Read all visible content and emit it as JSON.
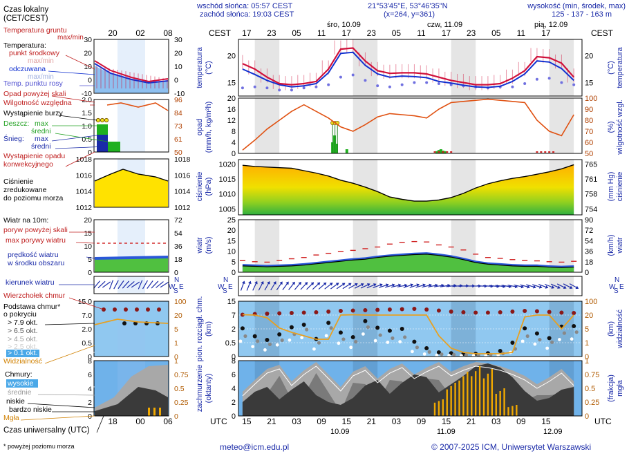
{
  "header": {
    "sunrise": "wschód słońca: 05:57 CEST",
    "sunset": "zachód słońca: 19:03 CEST",
    "coords": "21°53'45\"E, 53°46'35\"N",
    "grid": "(x=264, y=361)",
    "elevation_label": "wysokość (min, środek, max)",
    "elevation_values": "125 - 137 - 163 m"
  },
  "legend": {
    "local_time": "Czas lokalny\n(CET/CEST)",
    "soil_temp": "Temperatura gruntu",
    "soil_temp_sub": "max/min",
    "temperature": "Temperatura:",
    "mid_point": "punkt środkowy",
    "max_min": "max/min",
    "feels": "odczuwana",
    "max_min2": "max/min",
    "dew": "Temp. punktu rosy",
    "precip_above": "Opad powyżej skali",
    "humidity": "Wilgotność względna",
    "storm": "Wystąpienie burzy",
    "rain": "Deszcz:",
    "rain_max": "max",
    "rain_mean": "średni",
    "snow": "Śnieg:",
    "snow_max": "max",
    "snow_mean": "średni",
    "convective": "Wystąpienie opadu\nkonwekcyjnego",
    "pressure": "Ciśnienie\nzredukowane\ndo poziomu morza",
    "wind_at": "Wiatr na 10m:",
    "gust_above": "poryw powyżej skali",
    "gust_max": "max porywy wiatru",
    "wind_speed": "prędkość wiatru\nw środku obszaru",
    "wind_dir": "kierunek wiatru",
    "cloud_top": "Wierzchołek chmur",
    "cloud_base": "Podstawa chmur*\no pokryciu",
    "okt79": "> 7.9 okt.",
    "okt65": "> 6.5 okt.",
    "okt45": "> 4.5 okt.",
    "okt25": "> 2.5 okt.",
    "okt01": "> 0.1 okt.",
    "visibility": "Widzialność",
    "clouds": "Chmury:",
    "high": "wysokie",
    "middle": "średnie",
    "low": "niskie",
    "very_low": "bardzo niskie",
    "fog": "Mgła",
    "utc": "Czas uniwersalny (UTC)",
    "footnote": "* powyżej poziomu morza"
  },
  "footer": {
    "email": "meteo@icm.edu.pl",
    "copyright": "© 2007-2025 ICM, Uniwersytet Warszawski"
  },
  "colors": {
    "temp": "#d0103a",
    "feels": "#1030d0",
    "dew": "#7070e0",
    "humidity": "#e05010",
    "rain": "#20b020",
    "pressure_hi": "#ffd000",
    "pressure_lo": "#50c030",
    "wind_blue": "#2050d0",
    "visibility": "#e8a020",
    "sky": "#90c8f0"
  },
  "chart_data": [
    {
      "type": "line",
      "name": "temperature",
      "ylabel": "temperatura\n(°C)",
      "ylabel_right": "(°C)\ntemperatura",
      "yticks": [
        15,
        20
      ],
      "ylim": [
        12.5,
        23
      ],
      "x_utc_hours": [
        0,
        3,
        6,
        9,
        12,
        15,
        18,
        21,
        24,
        27,
        30,
        33,
        36,
        39,
        42,
        45,
        48,
        51,
        54,
        57,
        60,
        63,
        66,
        69,
        72,
        75,
        78,
        81
      ],
      "series": [
        {
          "name": "temperature",
          "values": [
            18.5,
            17.5,
            16.0,
            14.8,
            14.6,
            14.8,
            15.2,
            17.5,
            21.2,
            21.4,
            19.0,
            17.2,
            16.7,
            16.8,
            16.8,
            16.6,
            16.0,
            15.4,
            15.0,
            14.6,
            14.6,
            14.8,
            15.8,
            17.2,
            19.8,
            19.6,
            18.6,
            16.0
          ]
        },
        {
          "name": "feels",
          "values": [
            17.5,
            16.5,
            15.4,
            14.6,
            14.2,
            14.4,
            14.8,
            16.8,
            20.4,
            20.6,
            18.2,
            16.6,
            16.0,
            16.2,
            16.1,
            15.9,
            15.2,
            14.9,
            14.5,
            14.2,
            14.1,
            14.3,
            15.2,
            16.6,
            19.0,
            18.8,
            17.6,
            15.4
          ]
        },
        {
          "name": "dew",
          "values": [
            14.0,
            14.2,
            14.0,
            13.6,
            13.6,
            14.0,
            14.2,
            14.6,
            16.0,
            16.4,
            15.4,
            14.4,
            14.2,
            14.6,
            15.0,
            15.0,
            14.8,
            14.6,
            14.4,
            14.2,
            14.0,
            14.2,
            14.2,
            14.8,
            15.6,
            15.8,
            15.0,
            14.6
          ]
        }
      ]
    },
    {
      "type": "bar",
      "name": "precipitation",
      "ylabel": "opad\n(mm/h, kg/m²h)",
      "ylabel_right": "(%)\nwilgotność wzgl.",
      "yticks": [
        0,
        4,
        8,
        12,
        16,
        20
      ],
      "yticks_right": [
        50,
        60,
        70,
        80,
        90,
        100
      ],
      "humidity": [
        53,
        62,
        72,
        80,
        88,
        94,
        88,
        82,
        74,
        70,
        76,
        83,
        86,
        85,
        84,
        82,
        90,
        96,
        97,
        98,
        99,
        98,
        97,
        96,
        80,
        70,
        66,
        85
      ],
      "rain": [
        0,
        0,
        0,
        0,
        0,
        0,
        0,
        0,
        0,
        0,
        0,
        0,
        0,
        0,
        0,
        0,
        0,
        0,
        0,
        0,
        0,
        0,
        0,
        0,
        0,
        0,
        0,
        0
      ],
      "rain_bursts": [
        [
          22.0,
          4.0
        ],
        [
          22.5,
          6.5
        ],
        [
          23.0,
          3.5
        ],
        [
          25.5,
          1.5
        ],
        [
          47.5,
          0.8
        ],
        [
          48.0,
          1.2
        ],
        [
          48.5,
          1.5
        ],
        [
          49.0,
          1.0
        ],
        [
          49.5,
          0.8
        ]
      ],
      "storm_hours": [
        22.0,
        22.6,
        23.2
      ]
    },
    {
      "type": "area",
      "name": "pressure",
      "ylabel": "ciśnienie\n(hPa)",
      "ylabel_right": "(mm Hg)\nciśnienie",
      "yticks": [
        1005,
        1010,
        1015,
        1020
      ],
      "yticks_right": [
        754,
        758,
        761,
        765
      ],
      "ylim": [
        1003,
        1021.5
      ],
      "values": [
        1019.6,
        1019.2,
        1019.0,
        1018.8,
        1018.6,
        1017.8,
        1017.0,
        1016.0,
        1014.6,
        1013.6,
        1012.3,
        1010.8,
        1009.0,
        1008.2,
        1007.6,
        1007.6,
        1008.0,
        1008.8,
        1010.2,
        1012.0,
        1013.4,
        1014.4,
        1015.2,
        1015.8,
        1016.6,
        1017.4,
        1018.4,
        1019.8
      ]
    },
    {
      "type": "area",
      "name": "wind",
      "ylabel": "wiatr\n(m/s)",
      "ylabel_right": "(km/h)\nwiatr",
      "yticks": [
        0,
        5,
        10,
        15,
        20,
        25
      ],
      "yticks_right": [
        0,
        18,
        36,
        54,
        72,
        90
      ],
      "speed": [
        3.0,
        2.8,
        2.6,
        2.8,
        3.0,
        3.4,
        4.0,
        4.6,
        5.2,
        5.8,
        6.2,
        7.0,
        7.6,
        8.0,
        8.4,
        8.6,
        8.0,
        7.2,
        6.0,
        4.6,
        3.8,
        3.4,
        3.0,
        2.8,
        2.8,
        2.4,
        2.2,
        2.4
      ],
      "gust": [
        5.5,
        5.0,
        4.8,
        5.6,
        6.4,
        7.0,
        8.2,
        9.0,
        9.8,
        10.4,
        11.2,
        12.0,
        13.4,
        14.2,
        14.6,
        14.4,
        13.0,
        12.0,
        10.6,
        8.6,
        7.0,
        6.6,
        6.0,
        5.6,
        5.4,
        5.0,
        4.8,
        5.2
      ]
    },
    {
      "type": "scatter",
      "name": "cloud_base",
      "ylabel": "pion. rozciągł. chm.\n(km)",
      "ylabel_right": "(km)\nwidzialność",
      "yticks": [
        0,
        0.5,
        2.0,
        7.0,
        15.0
      ],
      "yticks_right": [
        0,
        1,
        5,
        20,
        100
      ],
      "visibility_km": [
        22,
        20,
        17,
        6,
        4,
        3,
        2,
        2,
        20,
        22,
        20,
        20,
        20,
        20,
        20,
        20,
        3,
        0.6,
        0.3,
        0.2,
        0.2,
        0.2,
        0.3,
        18,
        20,
        20,
        5,
        20
      ],
      "cloud_top_km": [
        7.2,
        7.6,
        7.8,
        8.0,
        8.2,
        8.4,
        8.6,
        9.0,
        9.4,
        9.6,
        9.8,
        10.0,
        10.2,
        10.4,
        10.6,
        10.2,
        9.6,
        9.0,
        8.6,
        8.4,
        8.4,
        8.6,
        9.0,
        9.4,
        9.2,
        8.8,
        8.4,
        8.2
      ]
    },
    {
      "type": "area",
      "name": "cloud_cover",
      "ylabel": "zachmurzenie\n(oktanty)",
      "ylabel_right": "(frakcja)\nmgła",
      "yticks": [
        0,
        2,
        4,
        6,
        8
      ],
      "yticks_right": [
        0,
        0.25,
        0.5,
        0.75,
        1
      ],
      "low": [
        2.0,
        3.5,
        4.2,
        2.4,
        3.8,
        5.0,
        3.0,
        2.0,
        1.6,
        2.6,
        4.4,
        5.2,
        3.2,
        4.8,
        6.0,
        5.6,
        3.4,
        4.6,
        5.8,
        7.2,
        7.6,
        7.0,
        5.6,
        3.6,
        2.2,
        2.6,
        3.8,
        4.2
      ],
      "fog": [
        0,
        0,
        0,
        0,
        0,
        0,
        0,
        0,
        0,
        0,
        0,
        0,
        0,
        0,
        0,
        0,
        0.3,
        0.6,
        0.8,
        0.9,
        0.85,
        0.5,
        0.2,
        0,
        0,
        0,
        0,
        0
      ]
    }
  ],
  "time_axis": {
    "cest_label": "CEST",
    "utc_label": "UTC",
    "cest_ticks": [
      "17",
      "23",
      "05",
      "11",
      "17",
      "23",
      "05",
      "11",
      "17",
      "23",
      "05",
      "11",
      "17"
    ],
    "utc_ticks": [
      "15",
      "21",
      "03",
      "09",
      "15",
      "21",
      "03",
      "09",
      "15",
      "21",
      "03",
      "09",
      "15"
    ],
    "days_top": [
      "śro, 10.09",
      "czw, 11.09",
      "pią, 12.09"
    ],
    "days_bottom": [
      "10.09",
      "11.09",
      "12.09"
    ],
    "mini_local_ticks": [
      "20",
      "02",
      "08"
    ],
    "mini_utc_ticks": [
      "18",
      "00",
      "06"
    ]
  },
  "mini_axes": {
    "temp_left": [
      "30",
      "20",
      "10",
      "0",
      "-10"
    ],
    "temp_right": [
      "30",
      "20",
      "10",
      "0",
      "-10"
    ],
    "precip_left": [
      "2.0",
      "1.5",
      "1.0",
      "0.5",
      "0"
    ],
    "precip_right": [
      "96",
      "84",
      "73",
      "61",
      "50"
    ],
    "pressure_left": [
      "1018",
      "1016",
      "1014",
      "1012"
    ],
    "pressure_right": [
      "1018",
      "1016",
      "1014",
      "1012"
    ],
    "wind_left": [
      "20",
      "15",
      "10",
      "5",
      "0"
    ],
    "wind_right": [
      "72",
      "54",
      "36",
      "18",
      "0"
    ],
    "cloud_left": [
      "15.0",
      "7.0",
      "2.0",
      "0.5",
      "0"
    ],
    "cloud_right": [
      "100",
      "20",
      "5",
      "1",
      "0"
    ],
    "cover_left": [
      "8",
      "6",
      "4",
      "2",
      "0"
    ],
    "cover_right": [
      "1",
      "0.75",
      "0.5",
      "0.25",
      "0"
    ]
  }
}
